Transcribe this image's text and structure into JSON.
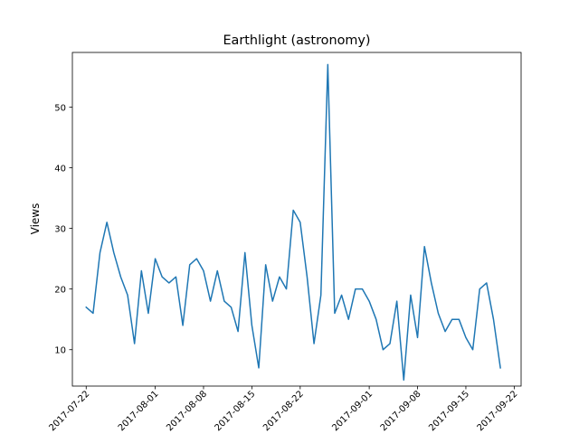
{
  "chart_data": {
    "type": "line",
    "title": "Earthlight (astronomy)",
    "xlabel": "",
    "ylabel": "Views",
    "x_start": "2017-07-22",
    "x_tick_labels": [
      "2017-07-22",
      "2017-08-01",
      "2017-08-08",
      "2017-08-15",
      "2017-08-22",
      "2017-09-01",
      "2017-09-08",
      "2017-09-15",
      "2017-09-22"
    ],
    "x_tick_dates": [
      "2017-07-22",
      "2017-08-01",
      "2017-08-08",
      "2017-08-15",
      "2017-08-22",
      "2017-09-01",
      "2017-09-08",
      "2017-09-15",
      "2017-09-22"
    ],
    "xlim": [
      "2017-07-20",
      "2017-09-23"
    ],
    "y_ticks": [
      10,
      20,
      30,
      40,
      50
    ],
    "ylim": [
      4,
      59
    ],
    "grid": false,
    "series": [
      {
        "name": "",
        "color": "#1f77b4",
        "values": [
          17,
          16,
          26,
          31,
          26,
          22,
          19,
          11,
          23,
          16,
          25,
          22,
          21,
          22,
          14,
          24,
          25,
          23,
          18,
          23,
          18,
          17,
          13,
          26,
          14,
          7,
          24,
          18,
          22,
          20,
          33,
          31,
          22,
          11,
          19,
          57,
          16,
          19,
          15,
          20,
          20,
          18,
          15,
          10,
          11,
          18,
          5,
          19,
          12,
          27,
          21,
          16,
          13,
          15,
          15,
          12,
          10,
          20,
          21,
          15,
          7
        ]
      }
    ]
  }
}
